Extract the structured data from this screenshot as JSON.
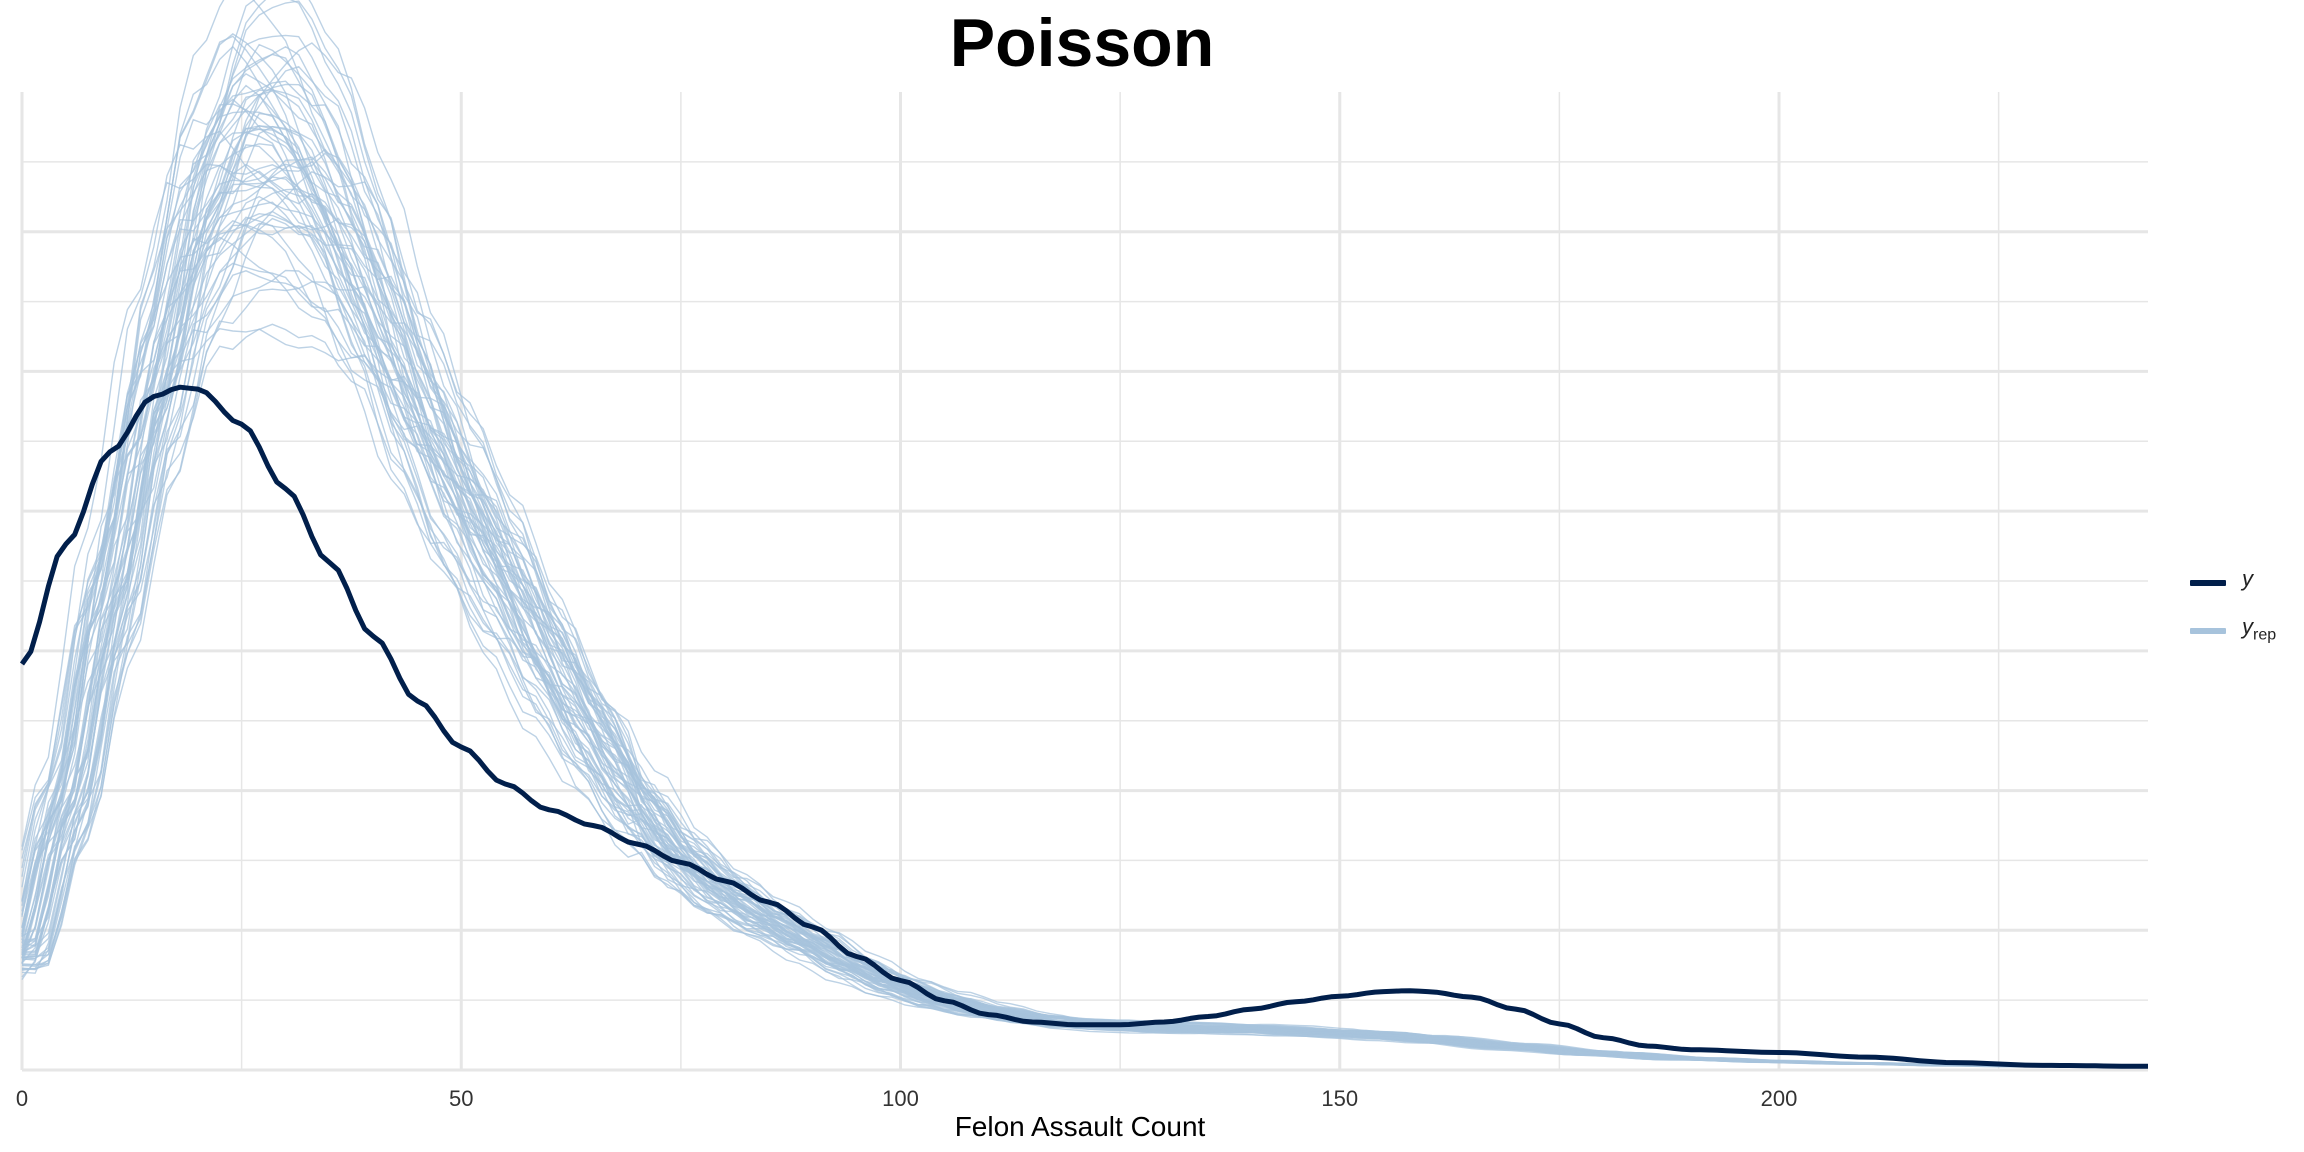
{
  "chart_data": {
    "type": "line",
    "title": "Poisson",
    "xlabel": "Felon Assault Count",
    "ylabel": "",
    "xlim": [
      0,
      242
    ],
    "ylim": [
      0,
      1.06
    ],
    "x_ticks": [
      0,
      50,
      100,
      150,
      200
    ],
    "x_tick_labels": [
      "0",
      "50",
      "100",
      "150",
      "200"
    ],
    "grid": true,
    "legend_position": "right",
    "colors": {
      "y": "#011f4b",
      "yrep": "#a7c3dc",
      "grid": "#e6e6e6"
    },
    "series": [
      {
        "name": "y",
        "x": [
          0,
          5,
          10,
          15,
          18,
          20,
          25,
          30,
          35,
          40,
          45,
          50,
          55,
          60,
          65,
          70,
          75,
          80,
          85,
          90,
          95,
          100,
          105,
          110,
          115,
          120,
          125,
          130,
          135,
          140,
          145,
          150,
          155,
          158,
          160,
          165,
          170,
          175,
          180,
          185,
          190,
          200,
          210,
          220,
          230,
          242
        ],
        "values": [
          0.44,
          0.57,
          0.67,
          0.73,
          0.74,
          0.738,
          0.7,
          0.63,
          0.55,
          0.47,
          0.4,
          0.35,
          0.31,
          0.282,
          0.265,
          0.245,
          0.225,
          0.205,
          0.182,
          0.155,
          0.123,
          0.097,
          0.075,
          0.06,
          0.052,
          0.049,
          0.049,
          0.052,
          0.058,
          0.066,
          0.074,
          0.08,
          0.085,
          0.086,
          0.085,
          0.079,
          0.066,
          0.05,
          0.035,
          0.026,
          0.022,
          0.019,
          0.014,
          0.008,
          0.005,
          0.004
        ]
      }
    ],
    "yrep": {
      "name": "y_rep",
      "draws": 60,
      "x": [
        0,
        5,
        10,
        15,
        20,
        25,
        30,
        35,
        40,
        45,
        50,
        55,
        60,
        65,
        70,
        75,
        80,
        85,
        90,
        95,
        100,
        105,
        110,
        115,
        120,
        125,
        130,
        135,
        140,
        145,
        150,
        155,
        160,
        170,
        180,
        190,
        200,
        210,
        220,
        230,
        242
      ],
      "mean": [
        0.12,
        0.28,
        0.5,
        0.72,
        0.9,
        0.98,
        0.975,
        0.92,
        0.83,
        0.72,
        0.62,
        0.53,
        0.44,
        0.36,
        0.29,
        0.23,
        0.19,
        0.16,
        0.135,
        0.11,
        0.09,
        0.075,
        0.063,
        0.055,
        0.05,
        0.048,
        0.046,
        0.045,
        0.044,
        0.042,
        0.04,
        0.037,
        0.033,
        0.025,
        0.018,
        0.012,
        0.009,
        0.007,
        0.005,
        0.004,
        0.003
      ]
    }
  },
  "legend": {
    "items": [
      {
        "label": "y",
        "sub": ""
      },
      {
        "label": "y",
        "sub": "rep"
      }
    ]
  }
}
